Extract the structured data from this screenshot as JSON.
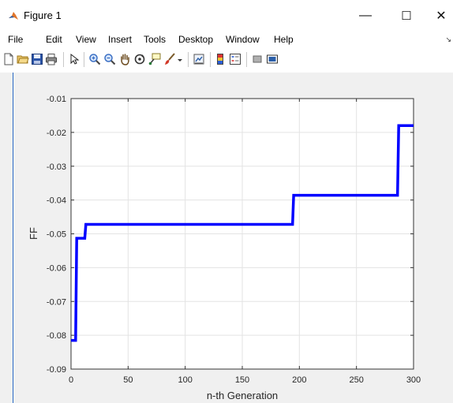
{
  "window": {
    "title": "Figure 1",
    "controls": {
      "minimize": "—",
      "maximize": "☐",
      "close": "✕"
    }
  },
  "menu": {
    "items": [
      "File",
      "Edit",
      "View",
      "Insert",
      "Tools",
      "Desktop",
      "Window",
      "Help"
    ]
  },
  "toolbar": {
    "icons": [
      "new-figure-icon",
      "open-file-icon",
      "save-icon",
      "print-icon",
      "pointer-icon",
      "zoom-in-icon",
      "zoom-out-icon",
      "pan-icon",
      "rotate-3d-icon",
      "data-cursor-icon",
      "brush-icon",
      "brush-dropdown-icon",
      "link-plot-icon",
      "colorbar-icon",
      "legend-icon",
      "hide-plot-tools-icon",
      "show-plot-tools-icon"
    ]
  },
  "chart_data": {
    "type": "line",
    "title": "",
    "xlabel": "n-th Generation",
    "ylabel": "FF",
    "xlim": [
      0,
      300
    ],
    "ylim": [
      -0.09,
      -0.01
    ],
    "xticks": [
      "0",
      "50",
      "100",
      "150",
      "200",
      "250",
      "300"
    ],
    "yticks": [
      "-0.09",
      "-0.08",
      "-0.07",
      "-0.06",
      "-0.05",
      "-0.04",
      "-0.03",
      "-0.02",
      "-0.01"
    ],
    "grid": true,
    "line_color": "#0000ff",
    "series": [
      {
        "x": [
          0,
          4,
          5,
          12,
          13,
          194,
          195,
          286,
          287,
          300
        ],
        "values": [
          -0.0815,
          -0.0815,
          -0.0513,
          -0.0513,
          -0.0472,
          -0.0472,
          -0.0386,
          -0.0386,
          -0.018,
          -0.018
        ]
      }
    ]
  }
}
